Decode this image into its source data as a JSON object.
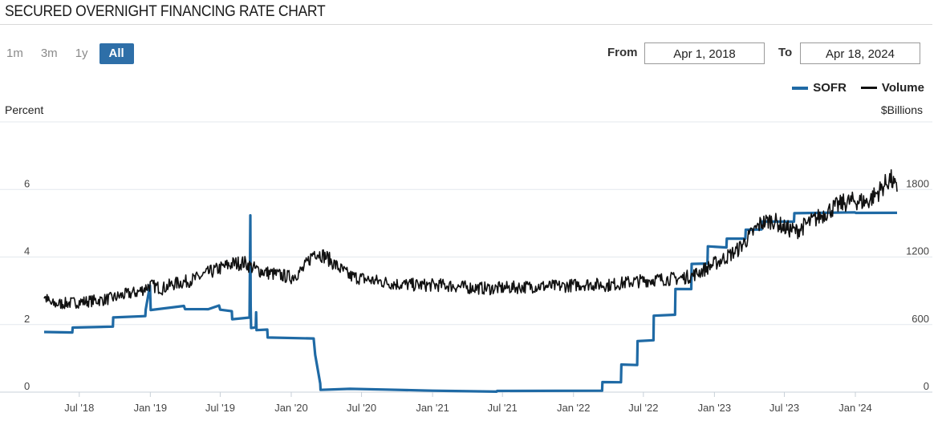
{
  "header": {
    "title": "SECURED OVERNIGHT FINANCING RATE CHART"
  },
  "range_buttons": [
    {
      "label": "1m",
      "active": false
    },
    {
      "label": "3m",
      "active": false
    },
    {
      "label": "1y",
      "active": false
    },
    {
      "label": "All",
      "active": true
    }
  ],
  "date_range": {
    "from_label": "From",
    "from_value": "Apr 1, 2018",
    "to_label": "To",
    "to_value": "Apr 18, 2024"
  },
  "chart_data": {
    "type": "line",
    "title": "SECURED OVERNIGHT FINANCING RATE CHART",
    "y_left_label": "Percent",
    "y_right_label": "$Billions",
    "y_left_range": [
      0,
      8
    ],
    "y_right_range": [
      0,
      2400
    ],
    "y_left_ticks": [
      "0",
      "2",
      "4",
      "6"
    ],
    "y_left_tick_values": [
      0,
      2,
      4,
      6
    ],
    "y_right_ticks": [
      "0",
      "600",
      "1200",
      "1800"
    ],
    "y_right_tick_values": [
      0,
      600,
      1200,
      1800
    ],
    "x_range": [
      "2018-04-01",
      "2024-04-18"
    ],
    "x_ticks": [
      "Jul '18",
      "Jan '19",
      "Jul '19",
      "Jan '20",
      "Jul '20",
      "Jan '21",
      "Jul '21",
      "Jan '22",
      "Jul '22",
      "Jan '23",
      "Jul '23",
      "Jan '24"
    ],
    "x_tick_dates": [
      "2018-07-01",
      "2019-01-01",
      "2019-07-01",
      "2020-01-01",
      "2020-07-01",
      "2021-01-01",
      "2021-07-01",
      "2022-01-01",
      "2022-07-01",
      "2023-01-01",
      "2023-07-01",
      "2024-01-01"
    ],
    "grid": "horizontal",
    "legend_position": "top-right",
    "series": [
      {
        "name": "SOFR",
        "axis": "left",
        "color": "#1f6aa5",
        "points": [
          [
            "2018-04-01",
            1.8
          ],
          [
            "2018-06-13",
            1.75
          ],
          [
            "2018-06-14",
            1.92
          ],
          [
            "2018-09-26",
            1.95
          ],
          [
            "2018-09-27",
            2.2
          ],
          [
            "2018-12-19",
            2.25
          ],
          [
            "2018-12-20",
            2.45
          ],
          [
            "2018-12-31",
            3.15
          ],
          [
            "2019-01-02",
            2.42
          ],
          [
            "2019-03-29",
            2.55
          ],
          [
            "2019-04-01",
            2.45
          ],
          [
            "2019-05-31",
            2.45
          ],
          [
            "2019-06-28",
            2.55
          ],
          [
            "2019-07-01",
            2.45
          ],
          [
            "2019-07-31",
            2.4
          ],
          [
            "2019-08-01",
            2.15
          ],
          [
            "2019-09-15",
            2.2
          ],
          [
            "2019-09-17",
            5.25
          ],
          [
            "2019-09-18",
            2.55
          ],
          [
            "2019-09-19",
            1.9
          ],
          [
            "2019-10-01",
            1.9
          ],
          [
            "2019-10-02",
            2.35
          ],
          [
            "2019-10-03",
            1.85
          ],
          [
            "2019-10-31",
            1.85
          ],
          [
            "2019-11-01",
            1.6
          ],
          [
            "2020-02-28",
            1.58
          ],
          [
            "2020-03-03",
            1.1
          ],
          [
            "2020-03-16",
            0.25
          ],
          [
            "2020-03-17",
            0.05
          ],
          [
            "2020-06-01",
            0.08
          ],
          [
            "2020-09-01",
            0.08
          ],
          [
            "2021-01-01",
            0.05
          ],
          [
            "2021-03-01",
            0.02
          ],
          [
            "2021-06-16",
            0.02
          ],
          [
            "2021-06-17",
            0.05
          ],
          [
            "2022-03-16",
            0.05
          ],
          [
            "2022-03-17",
            0.3
          ],
          [
            "2022-05-04",
            0.3
          ],
          [
            "2022-05-05",
            0.8
          ],
          [
            "2022-06-15",
            0.8
          ],
          [
            "2022-06-16",
            1.5
          ],
          [
            "2022-07-27",
            1.52
          ],
          [
            "2022-07-28",
            2.28
          ],
          [
            "2022-09-21",
            2.3
          ],
          [
            "2022-09-22",
            3.05
          ],
          [
            "2022-11-02",
            3.05
          ],
          [
            "2022-11-03",
            3.8
          ],
          [
            "2022-12-14",
            3.82
          ],
          [
            "2022-12-15",
            4.3
          ],
          [
            "2023-02-01",
            4.3
          ],
          [
            "2023-02-02",
            4.55
          ],
          [
            "2023-03-22",
            4.55
          ],
          [
            "2023-03-23",
            4.8
          ],
          [
            "2023-05-03",
            4.8
          ],
          [
            "2023-05-04",
            5.05
          ],
          [
            "2023-07-26",
            5.06
          ],
          [
            "2023-07-27",
            5.3
          ],
          [
            "2023-12-31",
            5.33
          ],
          [
            "2024-01-02",
            5.31
          ],
          [
            "2024-04-18",
            5.31
          ]
        ]
      },
      {
        "name": "Volume",
        "axis": "right",
        "color": "#111111",
        "points": [
          [
            "2018-04-01",
            850
          ],
          [
            "2018-04-20",
            780
          ],
          [
            "2018-06-01",
            790
          ],
          [
            "2018-07-01",
            800
          ],
          [
            "2018-09-01",
            820
          ],
          [
            "2018-10-01",
            840
          ],
          [
            "2018-11-01",
            870
          ],
          [
            "2018-12-01",
            890
          ],
          [
            "2019-01-01",
            950
          ],
          [
            "2019-02-01",
            920
          ],
          [
            "2019-03-01",
            960
          ],
          [
            "2019-04-01",
            980
          ],
          [
            "2019-05-01",
            1010
          ],
          [
            "2019-06-01",
            1060
          ],
          [
            "2019-07-01",
            1100
          ],
          [
            "2019-08-01",
            1140
          ],
          [
            "2019-09-01",
            1150
          ],
          [
            "2019-10-01",
            1090
          ],
          [
            "2019-11-01",
            1060
          ],
          [
            "2019-12-01",
            1040
          ],
          [
            "2020-01-01",
            1020
          ],
          [
            "2020-02-01",
            1090
          ],
          [
            "2020-03-01",
            1250
          ],
          [
            "2020-04-01",
            1200
          ],
          [
            "2020-05-01",
            1110
          ],
          [
            "2020-06-01",
            1030
          ],
          [
            "2020-08-01",
            990
          ],
          [
            "2020-10-01",
            960
          ],
          [
            "2020-12-01",
            950
          ],
          [
            "2021-02-01",
            950
          ],
          [
            "2021-04-01",
            930
          ],
          [
            "2021-06-01",
            920
          ],
          [
            "2021-08-01",
            930
          ],
          [
            "2021-10-01",
            940
          ],
          [
            "2021-12-01",
            940
          ],
          [
            "2022-02-01",
            960
          ],
          [
            "2022-04-01",
            950
          ],
          [
            "2022-06-01",
            980
          ],
          [
            "2022-08-01",
            1000
          ],
          [
            "2022-10-01",
            1010
          ],
          [
            "2022-11-01",
            1030
          ],
          [
            "2022-12-01",
            1080
          ],
          [
            "2023-01-01",
            1140
          ],
          [
            "2023-02-01",
            1200
          ],
          [
            "2023-03-01",
            1260
          ],
          [
            "2023-04-01",
            1380
          ],
          [
            "2023-05-01",
            1500
          ],
          [
            "2023-06-01",
            1530
          ],
          [
            "2023-07-01",
            1460
          ],
          [
            "2023-08-01",
            1430
          ],
          [
            "2023-09-01",
            1500
          ],
          [
            "2023-10-01",
            1560
          ],
          [
            "2023-11-01",
            1630
          ],
          [
            "2023-12-01",
            1680
          ],
          [
            "2024-01-01",
            1700
          ],
          [
            "2024-02-01",
            1690
          ],
          [
            "2024-03-01",
            1780
          ],
          [
            "2024-04-01",
            1900
          ],
          [
            "2024-04-18",
            1780
          ]
        ]
      }
    ]
  }
}
